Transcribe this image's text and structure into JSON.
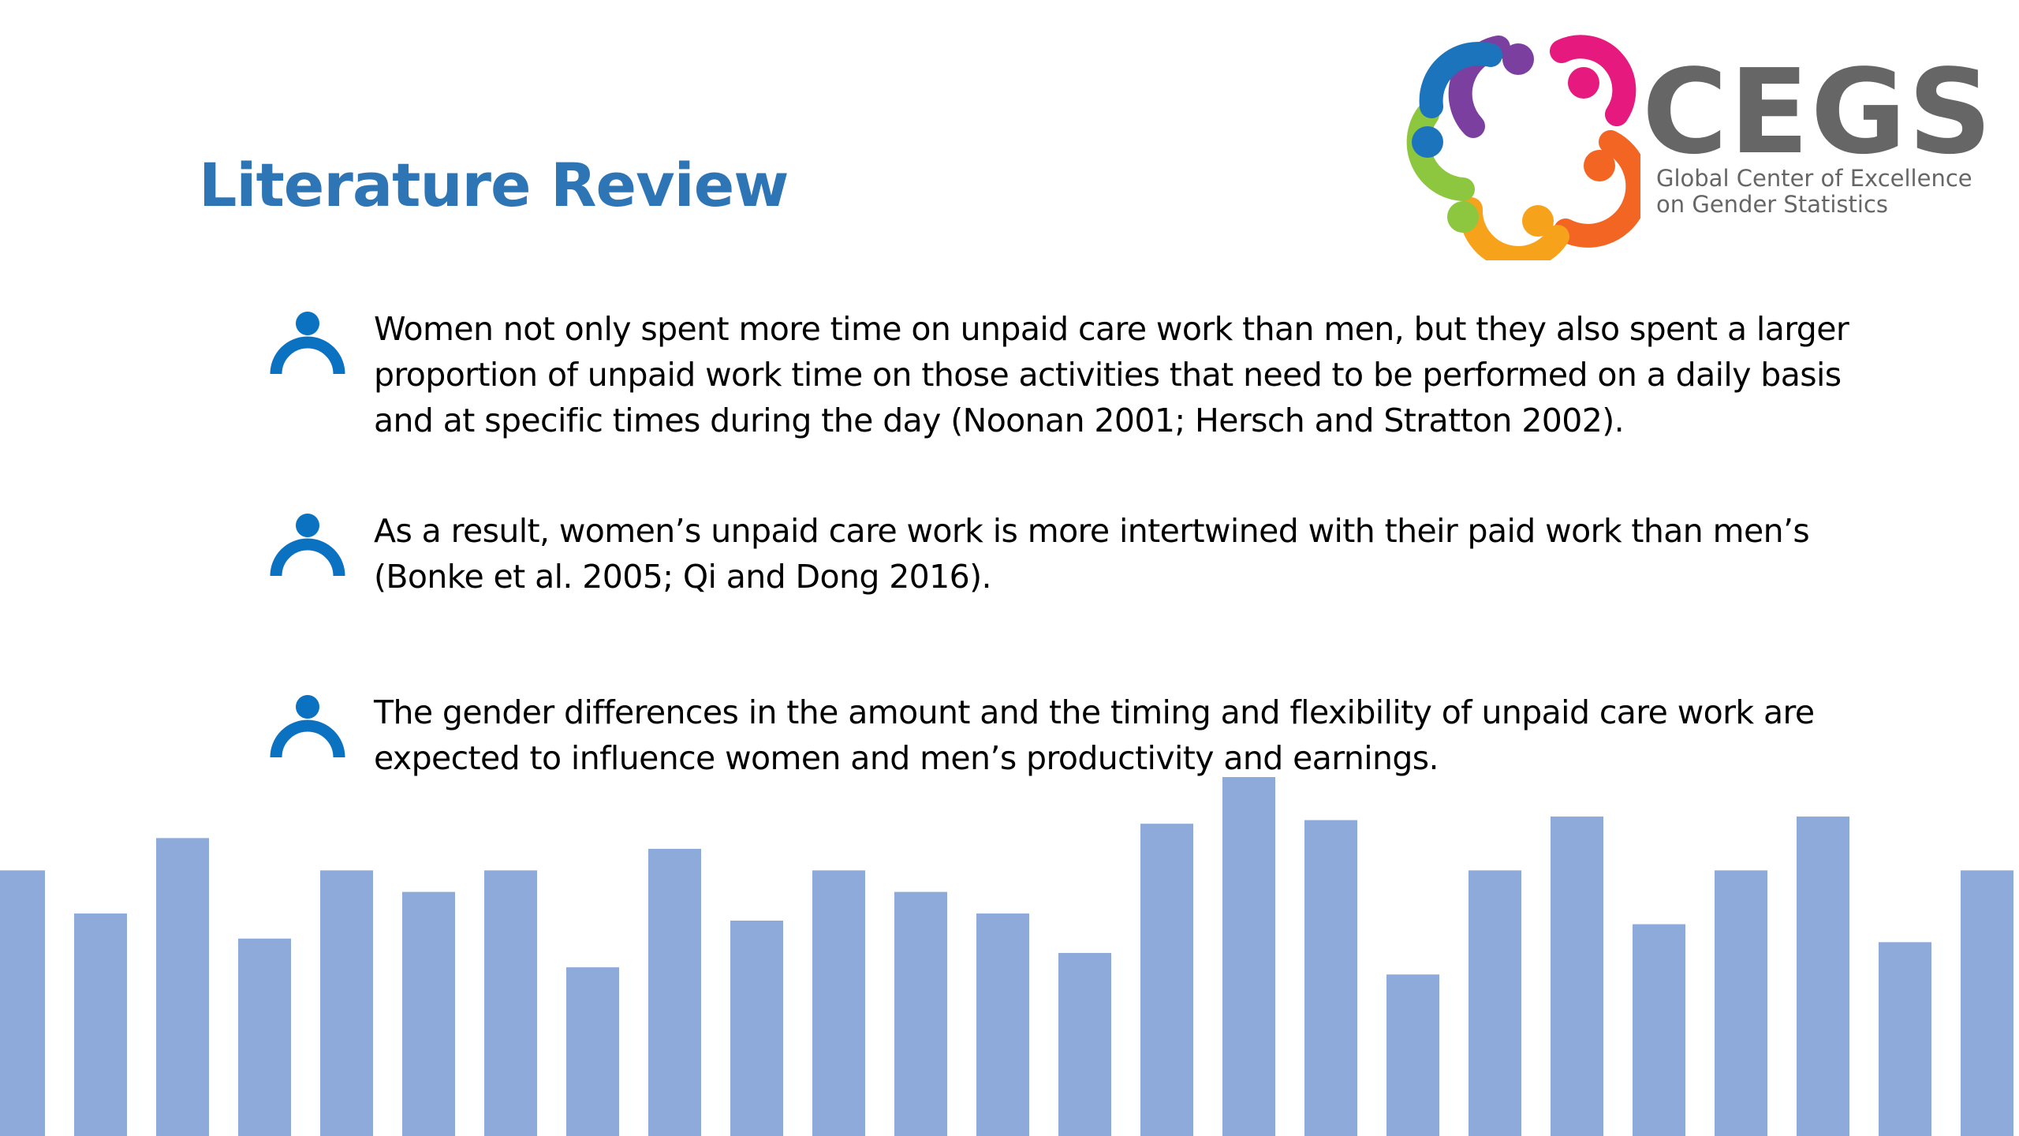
{
  "slide": {
    "title": "Literature Review",
    "logo": {
      "wordmark": "CEGS",
      "subtitle_line1": "Global Center of Excellence",
      "subtitle_line2": "on Gender Statistics",
      "colors": [
        "#7b3fa0",
        "#e6197f",
        "#f26522",
        "#f7a21b",
        "#8dc63f",
        "#1c75bc"
      ]
    },
    "bullet_icon": "person-icon",
    "bullet_color": "#0b72c1",
    "bullets": [
      {
        "text": "Women not only spent more time on unpaid care work than men, but they also spent a larger proportion of unpaid work time on those activities that need to be performed on a daily basis and at specific times during the day (Noonan 2001; Hersch and Stratton 2002)."
      },
      {
        "text": "As a result, women’s unpaid care work is more intertwined with their paid work than men’s (Bonke et al. 2005; Qi and Dong 2016)."
      },
      {
        "text": "The gender differences in the amount and the timing and flexibility of unpaid care work are expected to influence women and men’s productivity and earnings."
      }
    ],
    "decor_bars": {
      "color": "#8eaadb",
      "values": [
        0.74,
        0.62,
        0.83,
        0.55,
        0.74,
        0.68,
        0.74,
        0.47,
        0.8,
        0.6,
        0.74,
        0.68,
        0.62,
        0.51,
        0.87,
        1.0,
        0.88,
        0.45,
        0.74,
        0.89,
        0.59,
        0.74,
        0.89,
        0.54,
        0.74
      ]
    }
  }
}
